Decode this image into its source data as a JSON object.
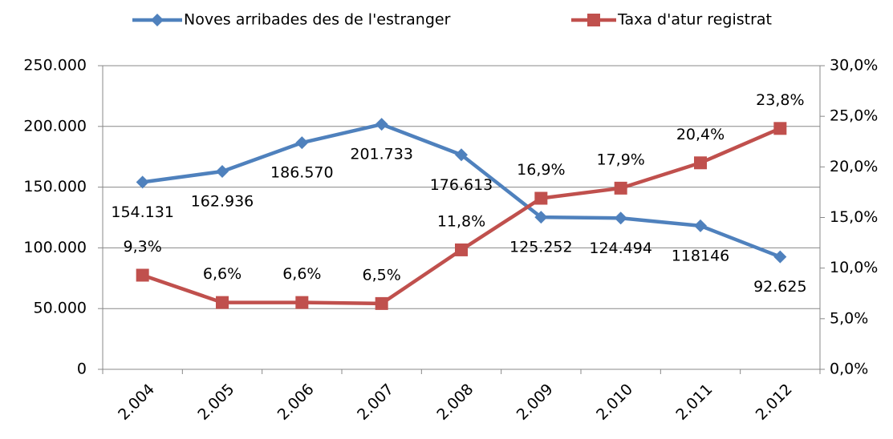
{
  "chart_data": {
    "type": "line",
    "categories": [
      "2.004",
      "2.005",
      "2.006",
      "2.007",
      "2.008",
      "2.009",
      "2.010",
      "2.011",
      "2.012"
    ],
    "series": [
      {
        "name": "Noves arribades des de l'estranger",
        "color": "#4f81bd",
        "marker": "diamond",
        "values": [
          154131,
          162936,
          186570,
          201733,
          176613,
          125252,
          124494,
          118146,
          92625
        ],
        "value_labels": [
          "154.131",
          "162.936",
          "186.570",
          "201.733",
          "176.613",
          "125.252",
          "124.494",
          "118146",
          "92.625"
        ]
      },
      {
        "name": "Taxa d'atur registrat",
        "color": "#c0504d",
        "marker": "square",
        "axis": "y2",
        "values": [
          9.3,
          6.6,
          6.6,
          6.5,
          11.8,
          16.9,
          17.9,
          20.4,
          23.8
        ],
        "value_labels": [
          "9,3%",
          "6,6%",
          "6,6%",
          "6,5%",
          "11,8%",
          "16,9%",
          "17,9%",
          "20,4%",
          "23,8%"
        ]
      }
    ],
    "ylim": [
      0,
      250000
    ],
    "yticks": [
      0,
      {
        "value": 50000,
        "label": "50.000"
      },
      {
        "value": 100000,
        "label": "100.000"
      },
      {
        "value": 150000,
        "label": "150.000"
      },
      {
        "value": 200000,
        "label": "200.000"
      },
      {
        "value": 250000,
        "label": "250.000"
      }
    ],
    "y2lim": [
      0,
      30
    ],
    "y2ticks": [
      {
        "value": 0,
        "label": "0,0%"
      },
      {
        "value": 5,
        "label": "5,0%"
      },
      {
        "value": 10,
        "label": "10,0%"
      },
      {
        "value": 15,
        "label": "15,0%"
      },
      {
        "value": 20,
        "label": "20,0%"
      },
      {
        "value": 25,
        "label": "25,0%"
      },
      {
        "value": 30,
        "label": "30,0%"
      }
    ],
    "grid": true,
    "legend": "top"
  }
}
